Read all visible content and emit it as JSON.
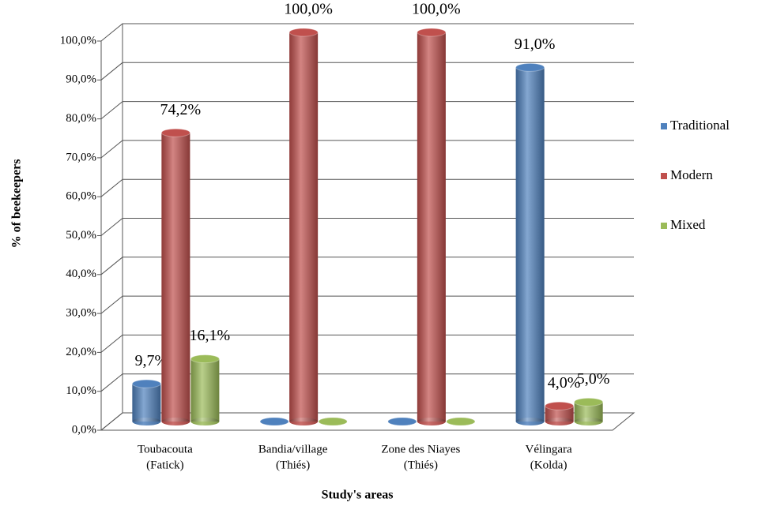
{
  "chart_data": {
    "type": "bar3d",
    "categories": [
      [
        "Toubacouta",
        "(Fatick)"
      ],
      [
        "Bandia/village",
        "(Thiés)"
      ],
      [
        "Zone des Niayes",
        "(Thiés)"
      ],
      [
        "Vélingara",
        "(Kolda)"
      ]
    ],
    "series": [
      {
        "name": "Traditional",
        "color": "#4f81bd",
        "values": [
          9.7,
          0,
          0,
          91.0
        ],
        "value_labels": [
          "9,7%",
          null,
          null,
          "91,0%"
        ]
      },
      {
        "name": "Modern",
        "color": "#c0504d",
        "values": [
          74.2,
          100,
          100,
          4.0
        ],
        "value_labels": [
          "74,2%",
          "100,0%",
          "100,0%",
          "4,0%"
        ]
      },
      {
        "name": "Mixed",
        "color": "#9bbb59",
        "values": [
          16.1,
          0,
          0,
          5.0
        ],
        "value_labels": [
          "16,1%",
          null,
          null,
          "5,0%"
        ]
      }
    ],
    "ylim": [
      0,
      100
    ],
    "yticks": [
      {
        "value": 0,
        "label": "0,0%"
      },
      {
        "value": 10,
        "label": "10,0%"
      },
      {
        "value": 20,
        "label": "20,0%"
      },
      {
        "value": 30,
        "label": "30,0%"
      },
      {
        "value": 40,
        "label": "40,0%"
      },
      {
        "value": 50,
        "label": "50,0%"
      },
      {
        "value": 60,
        "label": "60,0%"
      },
      {
        "value": 70,
        "label": "70,0%"
      },
      {
        "value": 80,
        "label": "80,0%"
      },
      {
        "value": 90,
        "label": "90,0%"
      },
      {
        "value": 100,
        "label": "100,0%"
      }
    ],
    "grid": true,
    "legend": "right",
    "y_label": "% of beekeepers",
    "x_label": "Study's areas"
  }
}
